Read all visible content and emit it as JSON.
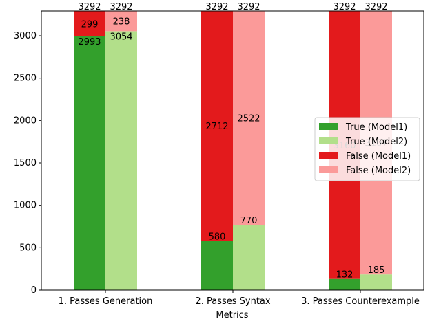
{
  "chart_data": {
    "type": "bar",
    "stacked": true,
    "title": "",
    "xlabel": "Metrics",
    "ylabel": "",
    "ylim": [
      0,
      3292
    ],
    "yticks": [
      0,
      500,
      1000,
      1500,
      2000,
      2500,
      3000
    ],
    "categories": [
      "1. Passes Generation",
      "2. Passes Syntax",
      "3. Passes Counterexample"
    ],
    "totals": {
      "model1": [
        3292,
        3292,
        3292
      ],
      "model2": [
        3292,
        3292,
        3292
      ]
    },
    "series": [
      {
        "name": "True (Model1)",
        "model": "model1",
        "kind": "true",
        "color": "#33a02c",
        "values": [
          2993,
          580,
          132
        ]
      },
      {
        "name": "True (Model2)",
        "model": "model2",
        "kind": "true",
        "color": "#b2df8a",
        "values": [
          3054,
          770,
          185
        ]
      },
      {
        "name": "False (Model1)",
        "model": "model1",
        "kind": "false",
        "color": "#e31a1c",
        "values": [
          299,
          2712,
          3160
        ]
      },
      {
        "name": "False (Model2)",
        "model": "model2",
        "kind": "false",
        "color": "#fb9a99",
        "values": [
          238,
          2522,
          3107
        ]
      }
    ],
    "legend_position": "center-right",
    "grid": false
  }
}
